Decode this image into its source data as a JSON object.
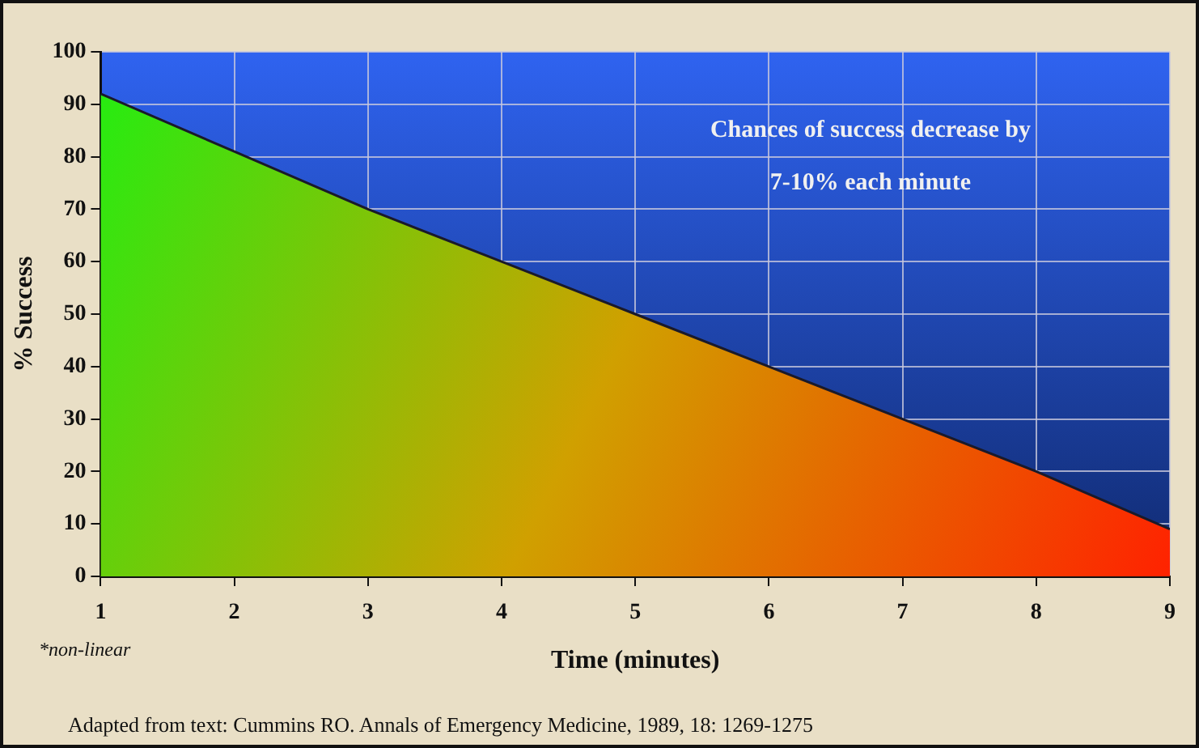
{
  "chart_data": {
    "type": "area",
    "xlabel": "Time (minutes)",
    "ylabel": "% Success",
    "x": [
      1,
      2,
      3,
      4,
      5,
      6,
      7,
      8,
      9
    ],
    "series": [
      {
        "color": "#d0a000",
        "values": [
          92,
          81,
          70,
          60,
          50,
          40,
          30,
          20,
          9
        ]
      }
    ],
    "xlim": [
      1,
      9
    ],
    "xticks": [
      1,
      2,
      3,
      4,
      5,
      6,
      7,
      8,
      9
    ],
    "ylim": [
      0,
      100
    ],
    "yticks": [
      0,
      10,
      20,
      30,
      40,
      50,
      60,
      70,
      80,
      90,
      100
    ],
    "grid": true,
    "annotations": [
      "Chances of success decrease by 7-10% each minute",
      "*non-linear",
      "Adapted from text: Cummins RO. Annals of Emergency Medicine, 1989, 18: 1269-1275"
    ]
  }
}
